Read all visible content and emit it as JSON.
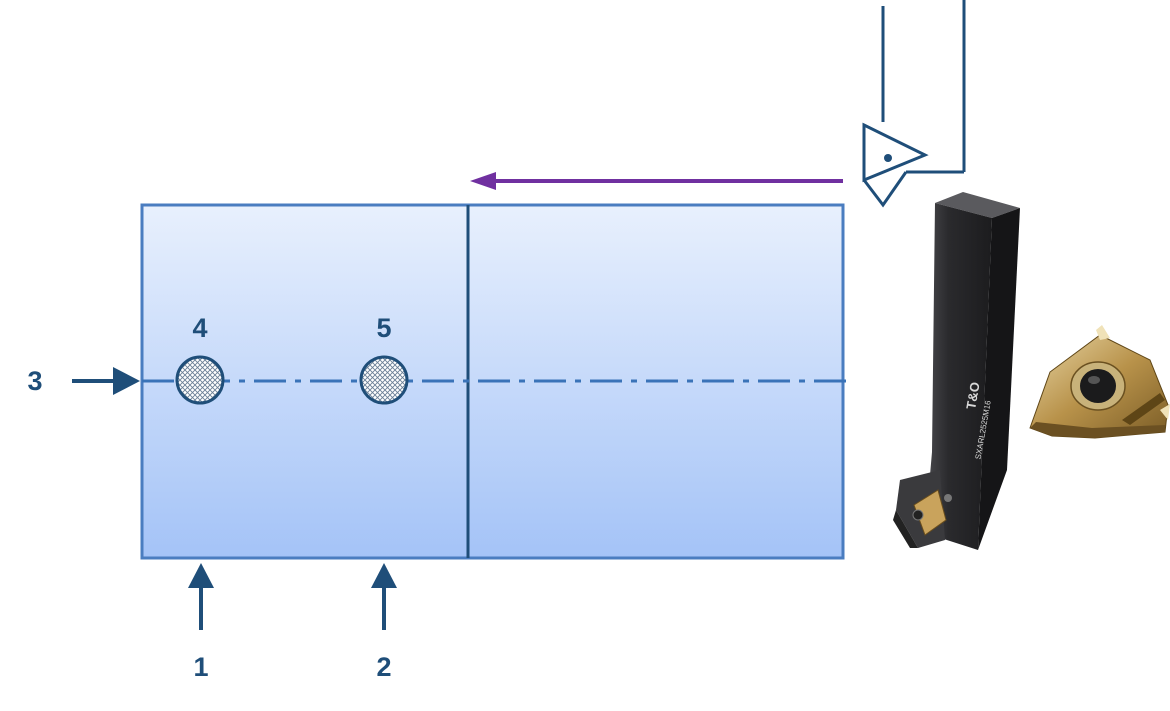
{
  "labels": {
    "arrow1": "1",
    "arrow2": "2",
    "arrow3": "3",
    "point4": "4",
    "point5": "5"
  },
  "tool_holder": {
    "marking_logo": "T&O",
    "marking_text": "SXARL2525M16"
  },
  "icons": {
    "workpiece": "rectangular-workpiece",
    "support_arrow": "up-arrow",
    "side_stop_arrow": "right-arrow",
    "feed_direction": "left-arrow",
    "cutting_tool_symbol": "turning-tool-schematic",
    "tool_holder_photo": "threading-tool-holder",
    "insert_photo": "triangular-threading-insert"
  },
  "colors": {
    "navy": "#1f4e79",
    "workpiece_border": "#4a7dc0",
    "workpiece_top": "#e8f0fd",
    "workpiece_bottom": "#a4c3f7",
    "centerline": "#3a73b8",
    "feed_arrow": "#7030a0",
    "holder_body": "#2e2e30",
    "insert_gold": "#b8924a"
  }
}
